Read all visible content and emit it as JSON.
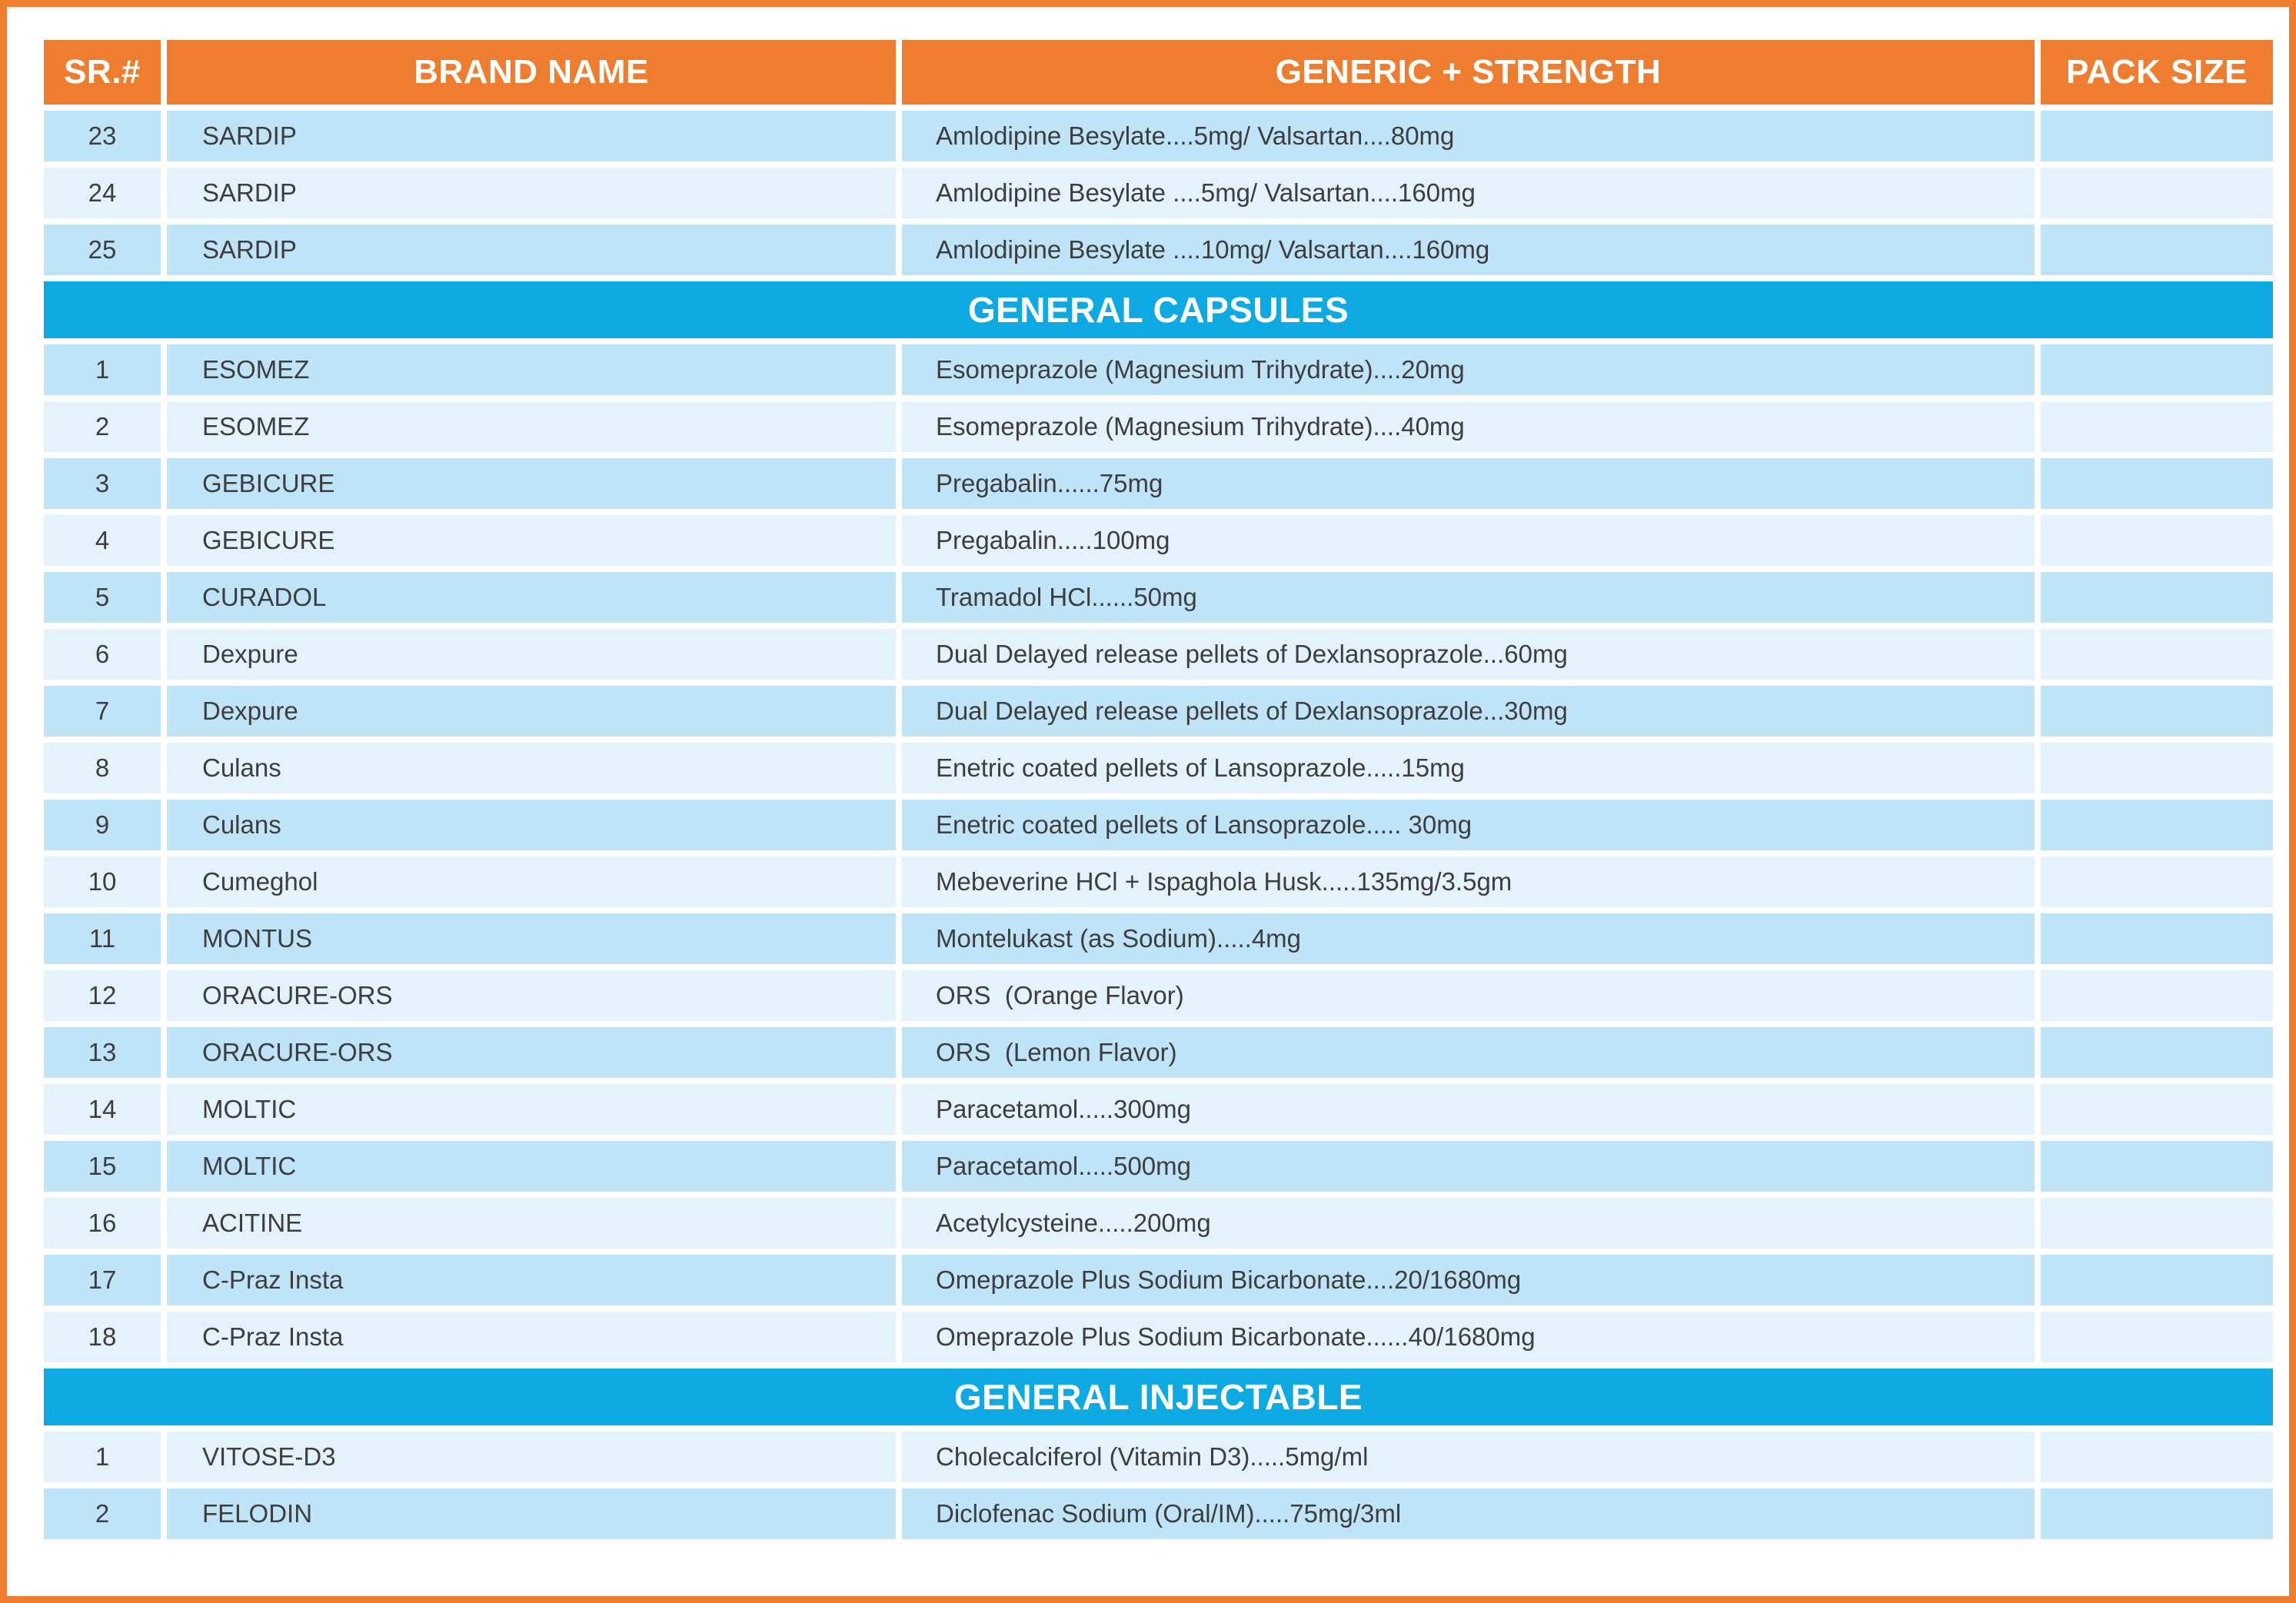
{
  "table": {
    "columns": [
      "SR.#",
      "BRAND NAME",
      "GENERIC + STRENGTH",
      "PACK SIZE"
    ],
    "sections": [
      {
        "heading": null,
        "zebra_start": "dark",
        "rows": [
          {
            "sr": "23",
            "brand": "SARDIP",
            "generic": "Amlodipine Besylate....5mg/ Valsartan....80mg",
            "pack": ""
          },
          {
            "sr": "24",
            "brand": "SARDIP",
            "generic": "Amlodipine Besylate ....5mg/ Valsartan....160mg",
            "pack": ""
          },
          {
            "sr": "25",
            "brand": "SARDIP",
            "generic": "Amlodipine Besylate ....10mg/ Valsartan....160mg",
            "pack": ""
          }
        ]
      },
      {
        "heading": "GENERAL CAPSULES",
        "zebra_start": "dark",
        "rows": [
          {
            "sr": "1",
            "brand": "ESOMEZ",
            "generic": "Esomeprazole (Magnesium Trihydrate)....20mg",
            "pack": ""
          },
          {
            "sr": "2",
            "brand": "ESOMEZ",
            "generic": "Esomeprazole (Magnesium Trihydrate)....40mg",
            "pack": ""
          },
          {
            "sr": "3",
            "brand": "GEBICURE",
            "generic": "Pregabalin......75mg",
            "pack": ""
          },
          {
            "sr": "4",
            "brand": "GEBICURE",
            "generic": "Pregabalin.....100mg",
            "pack": ""
          },
          {
            "sr": "5",
            "brand": "CURADOL",
            "generic": "Tramadol HCl......50mg",
            "pack": ""
          },
          {
            "sr": "6",
            "brand": "Dexpure",
            "generic": "Dual Delayed release pellets of Dexlansoprazole...60mg",
            "pack": ""
          },
          {
            "sr": "7",
            "brand": "Dexpure",
            "generic": "Dual Delayed release pellets of Dexlansoprazole...30mg",
            "pack": ""
          },
          {
            "sr": "8",
            "brand": "Culans",
            "generic": "Enetric coated pellets of Lansoprazole.....15mg",
            "pack": ""
          },
          {
            "sr": "9",
            "brand": "Culans",
            "generic": "Enetric coated pellets of Lansoprazole..... 30mg",
            "pack": ""
          },
          {
            "sr": "10",
            "brand": "Cumeghol",
            "generic": "Mebeverine HCl + Ispaghola Husk.....135mg/3.5gm",
            "pack": ""
          },
          {
            "sr": "11",
            "brand": "MONTUS",
            "generic": "Montelukast (as Sodium).....4mg",
            "pack": ""
          },
          {
            "sr": "12",
            "brand": "ORACURE-ORS",
            "generic": "ORS  (Orange Flavor)",
            "pack": ""
          },
          {
            "sr": "13",
            "brand": "ORACURE-ORS",
            "generic": "ORS  (Lemon Flavor)",
            "pack": ""
          },
          {
            "sr": "14",
            "brand": "MOLTIC",
            "generic": "Paracetamol.....300mg",
            "pack": ""
          },
          {
            "sr": "15",
            "brand": "MOLTIC",
            "generic": "Paracetamol.....500mg",
            "pack": ""
          },
          {
            "sr": "16",
            "brand": "ACITINE",
            "generic": "Acetylcysteine.....200mg",
            "pack": ""
          },
          {
            "sr": "17",
            "brand": "C-Praz Insta",
            "generic": "Omeprazole Plus Sodium Bicarbonate....20/1680mg",
            "pack": ""
          },
          {
            "sr": "18",
            "brand": "C-Praz Insta",
            "generic": "Omeprazole Plus Sodium Bicarbonate......40/1680mg",
            "pack": ""
          }
        ]
      },
      {
        "heading": "GENERAL INJECTABLE",
        "zebra_start": "light",
        "rows": [
          {
            "sr": "1",
            "brand": "VITOSE-D3",
            "generic": "Cholecalciferol (Vitamin D3).....5mg/ml",
            "pack": ""
          },
          {
            "sr": "2",
            "brand": "FELODIN",
            "generic": "Diclofenac Sodium (Oral/IM).....75mg/3ml",
            "pack": ""
          }
        ]
      }
    ]
  },
  "colors": {
    "accent-orange": "#EE7D2F",
    "band-blue": "#0CA9E3",
    "row-dark": "#BFE3F7",
    "row-light": "#E4F2FC",
    "text-dark": "#3E3E3E"
  }
}
